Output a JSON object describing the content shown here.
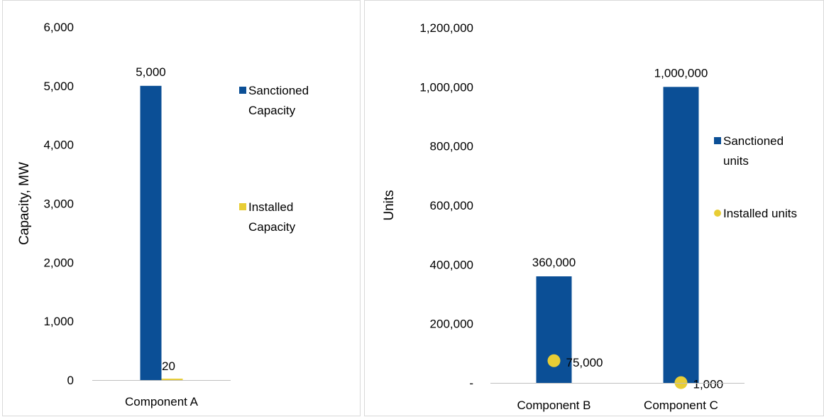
{
  "chart_data": [
    {
      "type": "bar",
      "categories": [
        "Component A"
      ],
      "ylabel": "Capacity, MW",
      "ylim": [
        0,
        6000
      ],
      "yticks": [
        0,
        1000,
        2000,
        3000,
        4000,
        5000,
        6000
      ],
      "ytick_labels": [
        "0",
        "1,000",
        "2,000",
        "3,000",
        "4,000",
        "5,000",
        "6,000"
      ],
      "series": [
        {
          "name": "Sanctioned Capacity",
          "legend_lines": [
            "Sanctioned",
            "Capacity"
          ],
          "marker": "bar",
          "color": "#0b4f96",
          "values": [
            5000
          ],
          "labels": [
            "5,000"
          ]
        },
        {
          "name": "Installed Capacity",
          "legend_lines": [
            "Installed",
            "Capacity"
          ],
          "marker": "bar",
          "color": "#e8cd35",
          "values": [
            20
          ],
          "labels": [
            "20"
          ]
        }
      ],
      "legend_position": "right",
      "grid": false
    },
    {
      "type": "bar",
      "categories": [
        "Component B",
        "Component C"
      ],
      "ylabel": "Units",
      "ylim": [
        0,
        1200000
      ],
      "yticks": [
        0,
        200000,
        400000,
        600000,
        800000,
        1000000,
        1200000
      ],
      "ytick_labels": [
        "-",
        "200,000",
        "400,000",
        "600,000",
        "800,000",
        "1,000,000",
        "1,200,000"
      ],
      "series": [
        {
          "name": "Sanctioned units",
          "legend_lines": [
            "Sanctioned",
            "units"
          ],
          "marker": "bar",
          "color": "#0b4f96",
          "values": [
            360000,
            1000000
          ],
          "labels": [
            "360,000",
            "1,000,000"
          ]
        },
        {
          "name": "Installed units",
          "legend_lines": [
            "Installed units"
          ],
          "marker": "dot",
          "color": "#e8cd35",
          "values": [
            75000,
            1000
          ],
          "labels": [
            "75,000",
            "1,000"
          ]
        }
      ],
      "legend_position": "right",
      "grid": false
    }
  ]
}
